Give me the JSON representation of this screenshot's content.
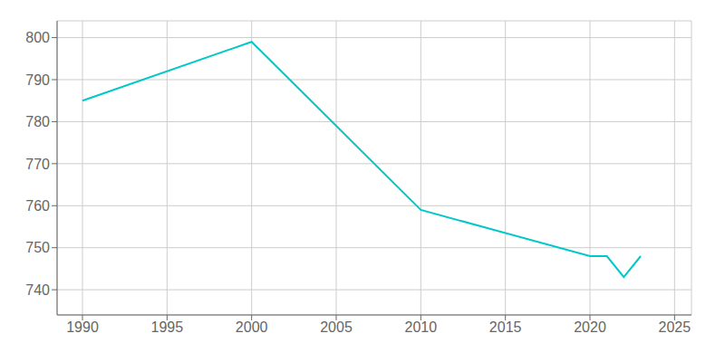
{
  "chart_data": {
    "type": "line",
    "x": [
      1990,
      2000,
      2010,
      2020,
      2021,
      2022,
      2023
    ],
    "values": [
      785,
      799,
      759,
      748,
      748,
      743,
      748
    ],
    "color": "#00C8C8",
    "xlim": [
      1988.5,
      2026
    ],
    "ylim": [
      734,
      804
    ],
    "xticks": [
      1990,
      1995,
      2000,
      2005,
      2010,
      2015,
      2020,
      2025
    ],
    "yticks": [
      740,
      750,
      760,
      770,
      780,
      790,
      800
    ],
    "grid": true
  }
}
